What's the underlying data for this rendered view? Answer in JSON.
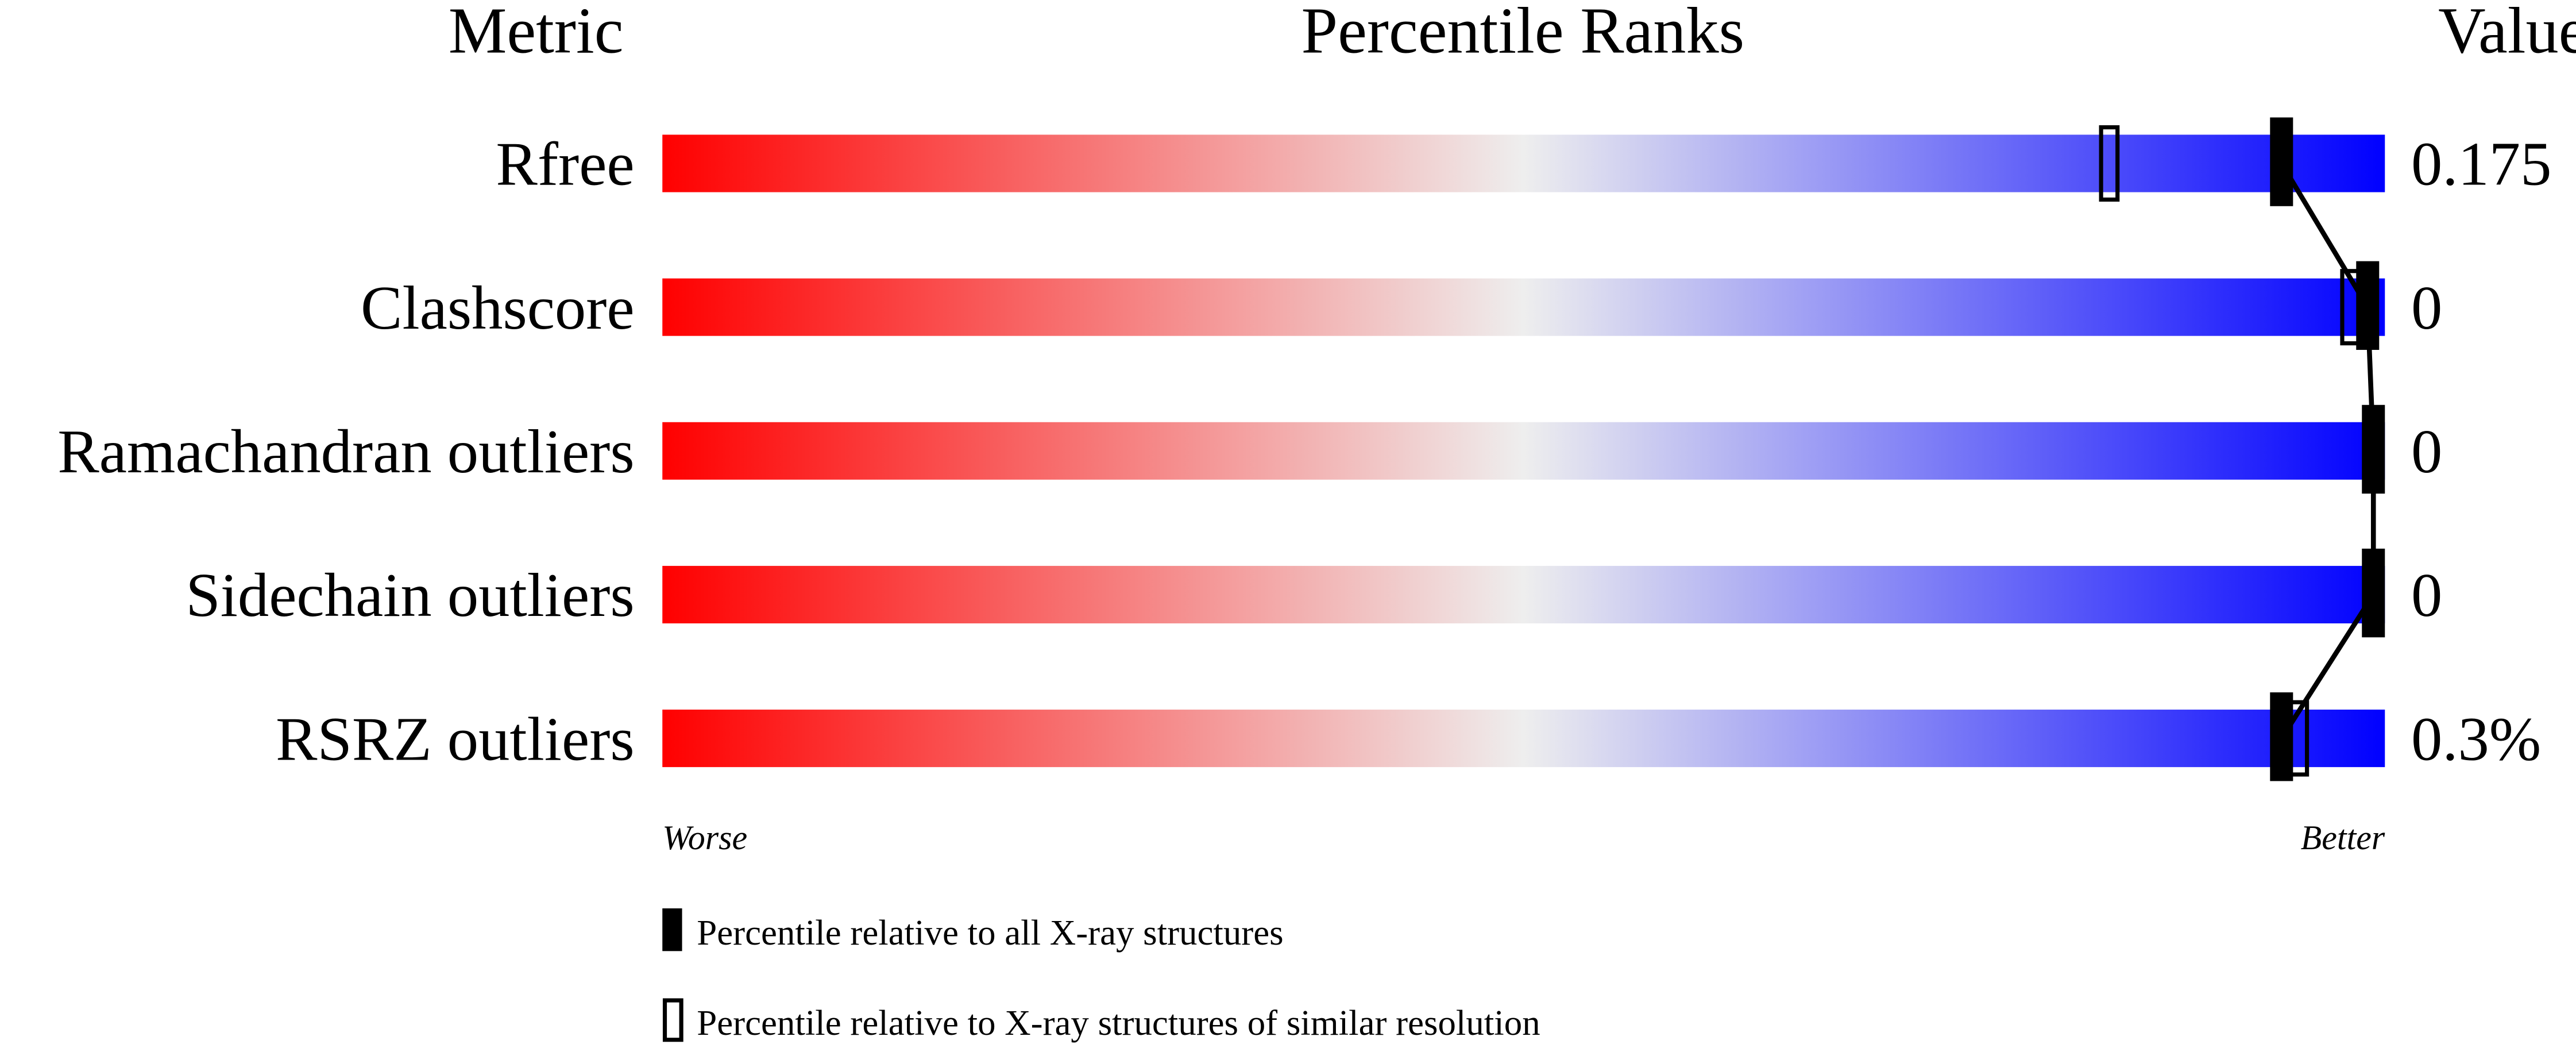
{
  "chart_data": {
    "type": "bar",
    "header": {
      "metric": "Metric",
      "title": "Percentile Ranks",
      "value": "Value"
    },
    "xlim": [
      0,
      100
    ],
    "gradient_colors": {
      "worse": "#ff0000",
      "middle": "#eeeeee",
      "better": "#0000ff"
    },
    "metrics": [
      {
        "label": "Rfree",
        "value": "0.175",
        "percentile_all": 94,
        "percentile_similar": 84
      },
      {
        "label": "Clashscore",
        "value": "0",
        "percentile_all": 99,
        "percentile_similar": 98
      },
      {
        "label": "Ramachandran outliers",
        "value": "0",
        "percentile_all": 100,
        "percentile_similar": 100
      },
      {
        "label": "Sidechain outliers",
        "value": "0",
        "percentile_all": 100,
        "percentile_similar": 100
      },
      {
        "label": "RSRZ outliers",
        "value": "0.3%",
        "percentile_all": 94,
        "percentile_similar": 95
      }
    ],
    "axis": {
      "worse": "Worse",
      "better": "Better"
    },
    "legend": [
      {
        "marker": "filled",
        "label": "Percentile relative to all X-ray structures"
      },
      {
        "marker": "open",
        "label": "Percentile relative to X-ray structures of similar resolution"
      }
    ]
  }
}
